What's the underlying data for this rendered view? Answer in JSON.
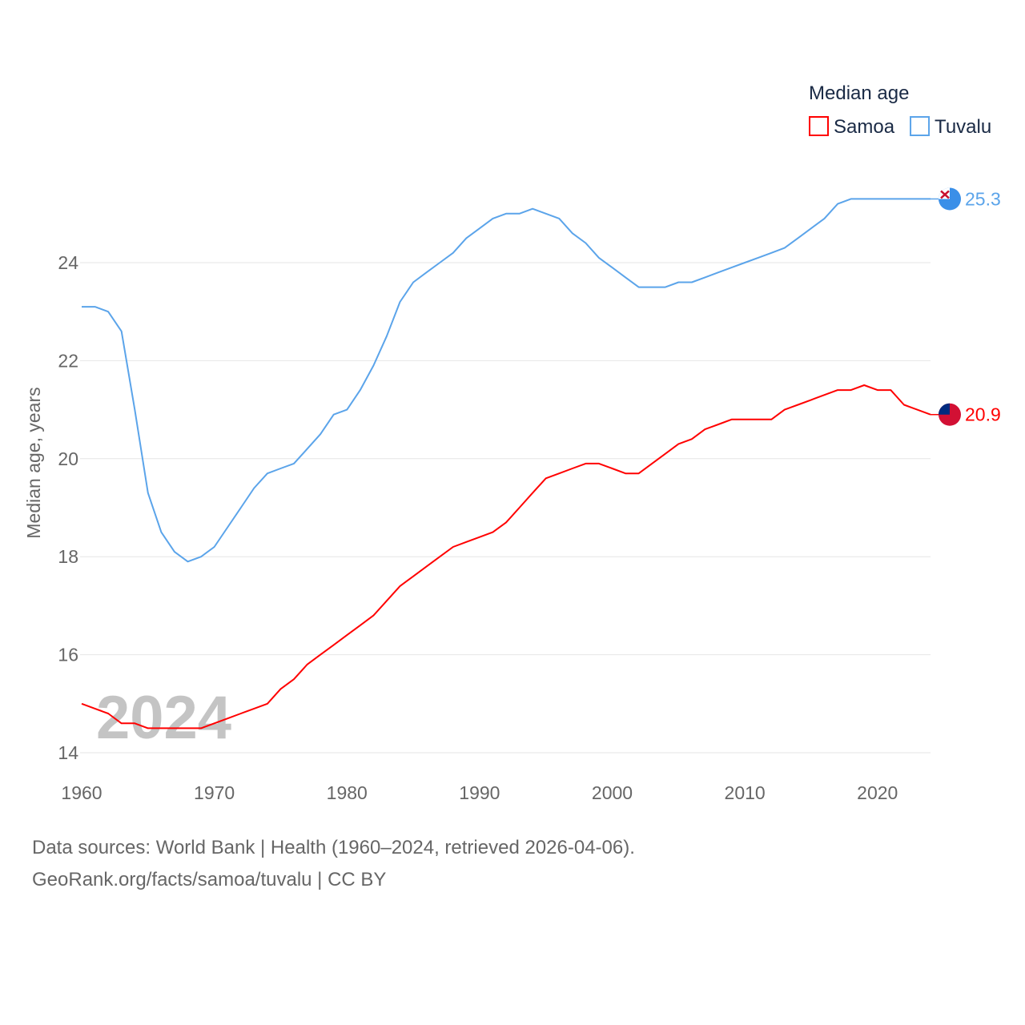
{
  "chart_data": {
    "type": "line",
    "title": "",
    "ylabel": "Median age, years",
    "xlabel": "",
    "xlim": [
      1960,
      2024
    ],
    "ylim": [
      14,
      25.3
    ],
    "grid": true,
    "x_ticks": [
      1960,
      1970,
      1980,
      1990,
      2000,
      2010,
      2020
    ],
    "y_ticks": [
      14,
      16,
      18,
      20,
      22,
      24
    ],
    "legend": {
      "title": "Median age",
      "placement": "top-right"
    },
    "year_watermark": "2024",
    "x": [
      1960,
      1961,
      1962,
      1963,
      1964,
      1965,
      1966,
      1967,
      1968,
      1969,
      1970,
      1971,
      1972,
      1973,
      1974,
      1975,
      1976,
      1977,
      1978,
      1979,
      1980,
      1981,
      1982,
      1983,
      1984,
      1985,
      1986,
      1987,
      1988,
      1989,
      1990,
      1991,
      1992,
      1993,
      1994,
      1995,
      1996,
      1997,
      1998,
      1999,
      2000,
      2001,
      2002,
      2003,
      2004,
      2005,
      2006,
      2007,
      2008,
      2009,
      2010,
      2011,
      2012,
      2013,
      2014,
      2015,
      2016,
      2017,
      2018,
      2019,
      2020,
      2021,
      2022,
      2023,
      2024
    ],
    "series": [
      {
        "name": "Samoa",
        "color": "#ff0000",
        "end_label": "20.9",
        "flag": "samoa-flag",
        "values": [
          15.0,
          14.9,
          14.8,
          14.6,
          14.6,
          14.5,
          14.5,
          14.5,
          14.5,
          14.5,
          14.6,
          14.7,
          14.8,
          14.9,
          15.0,
          15.3,
          15.5,
          15.8,
          16.0,
          16.2,
          16.4,
          16.6,
          16.8,
          17.1,
          17.4,
          17.6,
          17.8,
          18.0,
          18.2,
          18.3,
          18.4,
          18.5,
          18.7,
          19.0,
          19.3,
          19.6,
          19.7,
          19.8,
          19.9,
          19.9,
          19.8,
          19.7,
          19.7,
          19.9,
          20.1,
          20.3,
          20.4,
          20.6,
          20.7,
          20.8,
          20.8,
          20.8,
          20.8,
          21.0,
          21.1,
          21.2,
          21.3,
          21.4,
          21.4,
          21.5,
          21.4,
          21.4,
          21.1,
          21.0,
          20.9
        ]
      },
      {
        "name": "Tuvalu",
        "color": "#5ba4ea",
        "end_label": "25.3",
        "flag": "tuvalu-flag",
        "values": [
          23.1,
          23.1,
          23.0,
          22.6,
          21.0,
          19.3,
          18.5,
          18.1,
          17.9,
          18.0,
          18.2,
          18.6,
          19.0,
          19.4,
          19.7,
          19.8,
          19.9,
          20.2,
          20.5,
          20.9,
          21.0,
          21.4,
          21.9,
          22.5,
          23.2,
          23.6,
          23.8,
          24.0,
          24.2,
          24.5,
          24.7,
          24.9,
          25.0,
          25.0,
          25.1,
          25.0,
          24.9,
          24.6,
          24.4,
          24.1,
          23.9,
          23.7,
          23.5,
          23.5,
          23.5,
          23.6,
          23.6,
          23.7,
          23.8,
          23.9,
          24.0,
          24.1,
          24.2,
          24.3,
          24.5,
          24.7,
          24.9,
          25.2,
          25.3,
          25.3,
          25.3,
          25.3,
          25.3,
          25.3,
          25.3
        ]
      }
    ]
  },
  "footer": {
    "line1": "Data sources: World Bank | Health (1960–2024, retrieved 2026-04-06).",
    "line2": "GeoRank.org/facts/samoa/tuvalu | CC BY"
  }
}
